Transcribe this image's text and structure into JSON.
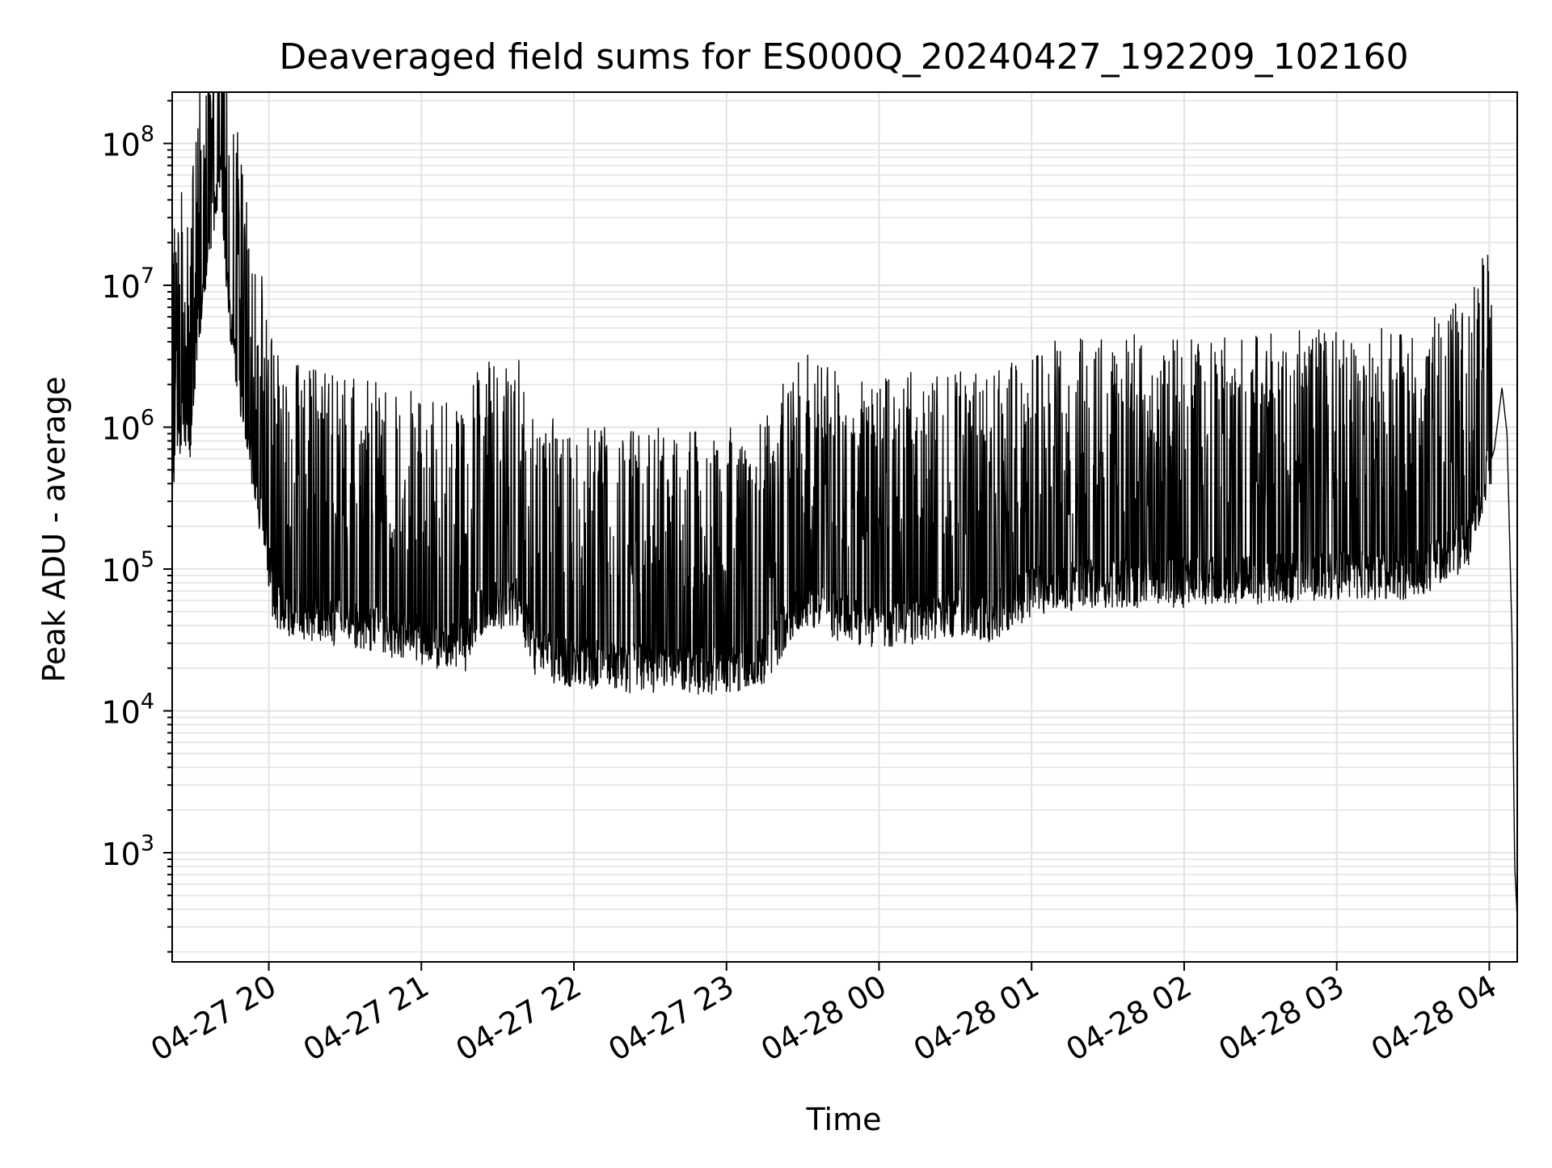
{
  "chart_data": {
    "type": "line",
    "title": "Deaveraged field sums for ES000Q_20240427_192209_102160",
    "xlabel": "Time",
    "ylabel": "Peak ADU - average",
    "y_scale": "log",
    "ylim": [
      170,
      230000000
    ],
    "xlim": [
      "2024-04-27T19:22",
      "2024-04-28T04:11"
    ],
    "x_ticks": [
      {
        "value": "2024-04-27T20:00",
        "label": "04-27 20"
      },
      {
        "value": "2024-04-27T21:00",
        "label": "04-27 21"
      },
      {
        "value": "2024-04-27T22:00",
        "label": "04-27 22"
      },
      {
        "value": "2024-04-27T23:00",
        "label": "04-27 23"
      },
      {
        "value": "2024-04-28T00:00",
        "label": "04-28 00"
      },
      {
        "value": "2024-04-28T01:00",
        "label": "04-28 01"
      },
      {
        "value": "2024-04-28T02:00",
        "label": "04-28 02"
      },
      {
        "value": "2024-04-28T03:00",
        "label": "04-28 03"
      },
      {
        "value": "2024-04-28T04:00",
        "label": "04-28 04"
      }
    ],
    "y_ticks": [
      {
        "value": 1000,
        "base": "10",
        "exp": "3"
      },
      {
        "value": 10000,
        "base": "10",
        "exp": "4"
      },
      {
        "value": 100000,
        "base": "10",
        "exp": "5"
      },
      {
        "value": 1000000,
        "base": "10",
        "exp": "6"
      },
      {
        "value": 10000000,
        "base": "10",
        "exp": "7"
      },
      {
        "value": 100000000,
        "base": "10",
        "exp": "8"
      }
    ],
    "grid": true,
    "minor_grid": true,
    "colors": {
      "line": "#000000",
      "grid": "#e3e3e3",
      "axes": "#000000"
    },
    "series": [
      {
        "values": [
          [
            "2024-04-27T19:22",
            330000
          ],
          [
            "2024-04-27T19:26",
            1300000
          ],
          [
            "2024-04-27T19:29",
            700000
          ],
          [
            "2024-04-27T19:32",
            5000000
          ],
          [
            "2024-04-27T19:35",
            12000000
          ],
          [
            "2024-04-27T19:38",
            30000000
          ],
          [
            "2024-04-27T19:41",
            60000000
          ],
          [
            "2024-04-27T19:44",
            8000000
          ],
          [
            "2024-04-27T19:47",
            3000000
          ],
          [
            "2024-04-27T19:50",
            1200000
          ],
          [
            "2024-04-27T19:53",
            600000
          ],
          [
            "2024-04-27T19:56",
            300000
          ],
          [
            "2024-04-27T19:59",
            150000
          ],
          [
            "2024-04-27T20:02",
            60000
          ],
          [
            "2024-04-27T20:08",
            50000
          ],
          [
            "2024-04-27T20:20",
            45000
          ],
          [
            "2024-04-27T20:35",
            40000
          ],
          [
            "2024-04-27T20:50",
            35000
          ],
          [
            "2024-04-27T21:05",
            30000
          ],
          [
            "2024-04-27T21:18",
            28000
          ],
          [
            "2024-04-27T21:22",
            50000
          ],
          [
            "2024-04-27T21:38",
            60000
          ],
          [
            "2024-04-27T21:45",
            25000
          ],
          [
            "2024-04-27T22:00",
            22000
          ],
          [
            "2024-04-27T22:20",
            20000
          ],
          [
            "2024-04-27T22:40",
            20000
          ],
          [
            "2024-04-27T23:00",
            19000
          ],
          [
            "2024-04-27T23:15",
            22000
          ],
          [
            "2024-04-27T23:30",
            60000
          ],
          [
            "2024-04-27T23:45",
            45000
          ],
          [
            "2024-04-28T00:00",
            40000
          ],
          [
            "2024-04-28T00:15",
            45000
          ],
          [
            "2024-04-28T00:30",
            50000
          ],
          [
            "2024-04-28T00:45",
            45000
          ],
          [
            "2024-04-28T01:00",
            70000
          ],
          [
            "2024-04-28T01:30",
            80000
          ],
          [
            "2024-04-28T02:00",
            80000
          ],
          [
            "2024-04-28T02:30",
            85000
          ],
          [
            "2024-04-28T03:00",
            90000
          ],
          [
            "2024-04-28T03:30",
            90000
          ],
          [
            "2024-04-28T03:52",
            150000
          ],
          [
            "2024-04-28T03:58",
            400000
          ],
          [
            "2024-04-28T04:02",
            700000
          ],
          [
            "2024-04-28T04:05",
            1900000
          ],
          [
            "2024-04-28T04:07",
            900000
          ],
          [
            "2024-04-28T04:09",
            30000
          ],
          [
            "2024-04-28T04:10",
            800
          ],
          [
            "2024-04-28T04:11",
            350
          ]
        ]
      }
    ]
  }
}
